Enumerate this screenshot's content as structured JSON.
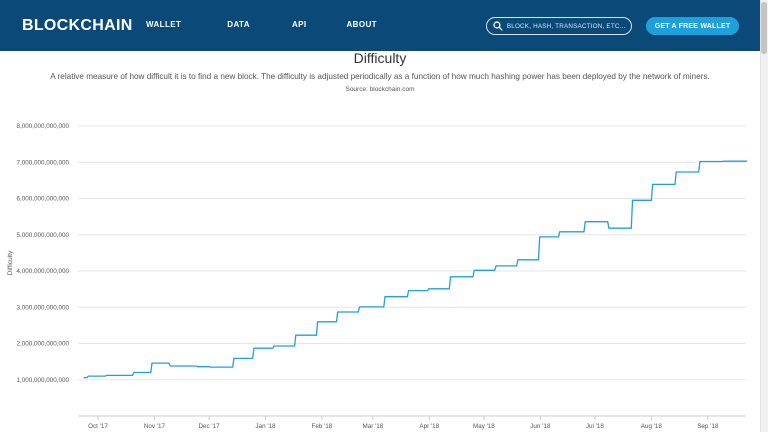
{
  "header": {
    "logo": "BLOCKCHAIN",
    "nav": [
      "WALLET",
      "DATA",
      "API",
      "ABOUT"
    ],
    "search_placeholder": "BLOCK, HASH, TRANSACTION, ETC...",
    "cta_label": "GET A FREE WALLET"
  },
  "page": {
    "title": "Difficulty",
    "description": "A relative measure of how difficult it is to find a new block. The difficulty is adjusted periodically as a function of how much hashing power has been deployed by the network of miners.",
    "source": "Source: blockchain.com"
  },
  "colors": {
    "header_bg": "#0b4a78",
    "cta_bg": "#1fa0dd",
    "line": "#1fa0dd"
  },
  "chart_data": {
    "type": "line",
    "title": "",
    "xlabel": "",
    "ylabel": "Difficulty",
    "ylim": [
      0,
      8000000000000
    ],
    "y_ticks": [
      1000000000000,
      2000000000000,
      3000000000000,
      4000000000000,
      5000000000000,
      6000000000000,
      7000000000000,
      8000000000000
    ],
    "y_tick_labels": [
      "1,000,000,000,000",
      "2,000,000,000,000",
      "3,000,000,000,000",
      "4,000,000,000,000",
      "5,000,000,000,000",
      "6,000,000,000,000",
      "7,000,000,000,000",
      "8,000,000,000,000"
    ],
    "x_range": [
      "2017-09-20",
      "2018-09-22"
    ],
    "x_ticks": [
      "2017-10-01",
      "2017-11-01",
      "2017-12-01",
      "2018-01-01",
      "2018-02-01",
      "2018-03-01",
      "2018-04-01",
      "2018-05-01",
      "2018-06-01",
      "2018-07-01",
      "2018-08-01",
      "2018-09-01"
    ],
    "x_tick_labels": [
      "Oct '17",
      "Nov '17",
      "Dec '17",
      "Jan '18",
      "Feb '18",
      "Mar '18",
      "Apr '18",
      "May '18",
      "Jun '18",
      "Jul '18",
      "Aug '18",
      "Sep '18"
    ],
    "grid": true,
    "legend": "none",
    "series": [
      {
        "x": [
          "2017-09-23",
          "2017-09-25",
          "2017-10-05",
          "2017-10-20",
          "2017-10-30",
          "2017-11-09",
          "2017-11-24",
          "2017-12-01",
          "2017-12-14",
          "2017-12-25",
          "2018-01-05",
          "2018-01-17",
          "2018-01-29",
          "2018-02-09",
          "2018-02-21",
          "2018-03-07",
          "2018-03-20",
          "2018-03-31",
          "2018-04-12",
          "2018-04-25",
          "2018-05-07",
          "2018-05-19",
          "2018-05-31",
          "2018-06-11",
          "2018-06-25",
          "2018-07-08",
          "2018-07-21",
          "2018-08-01",
          "2018-08-14",
          "2018-08-27",
          "2018-09-09",
          "2018-09-22"
        ],
        "y": [
          1060000000000,
          1100000000000,
          1120000000000,
          1200000000000,
          1460000000000,
          1380000000000,
          1360000000000,
          1350000000000,
          1590000000000,
          1870000000000,
          1930000000000,
          2230000000000,
          2600000000000,
          2870000000000,
          3010000000000,
          3290000000000,
          3460000000000,
          3510000000000,
          3840000000000,
          4020000000000,
          4140000000000,
          4310000000000,
          4940000000000,
          5080000000000,
          5360000000000,
          5180000000000,
          5950000000000,
          6390000000000,
          6730000000000,
          7020000000000,
          7030000000000,
          7030000000000
        ]
      }
    ]
  }
}
